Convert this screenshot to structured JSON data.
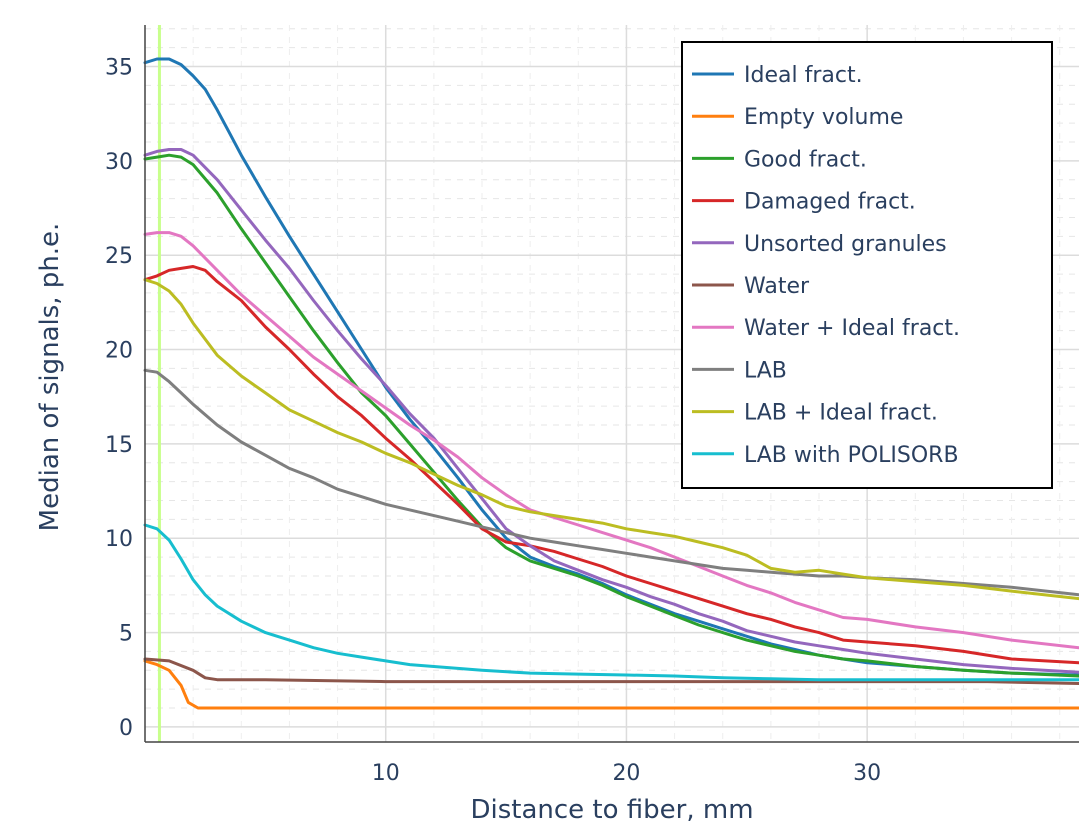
{
  "chart_data": {
    "type": "line",
    "title": "",
    "xlabel": "Distance to fiber, mm",
    "ylabel": "Median of signals, ph.e.",
    "xlim": [
      0,
      38.8
    ],
    "ylim": [
      -0.8,
      37.2
    ],
    "x_ticks": [
      "10",
      "20",
      "30"
    ],
    "y_ticks": [
      "0",
      "5",
      "10",
      "15",
      "20",
      "25",
      "30",
      "35"
    ],
    "x_tick_values": [
      10,
      20,
      30
    ],
    "y_tick_values": [
      0,
      5,
      10,
      15,
      20,
      25,
      30,
      35
    ],
    "grid": true,
    "minor_grid": "dashed",
    "legend_position": "top-right",
    "reference_line": {
      "x": 0.6,
      "color": "#c8ff8c"
    },
    "series": [
      {
        "name": "Ideal fract.",
        "color": "#1f77b4",
        "points": [
          [
            0,
            35.2
          ],
          [
            0.5,
            35.4
          ],
          [
            1,
            35.4
          ],
          [
            1.5,
            35.1
          ],
          [
            2,
            34.5
          ],
          [
            2.5,
            33.8
          ],
          [
            3,
            32.7
          ],
          [
            3.5,
            31.5
          ],
          [
            4,
            30.3
          ],
          [
            5,
            28.1
          ],
          [
            6,
            26
          ],
          [
            7,
            24
          ],
          [
            8,
            22
          ],
          [
            9,
            20
          ],
          [
            10,
            18
          ],
          [
            11,
            16.3
          ],
          [
            12,
            14.8
          ],
          [
            13,
            13.2
          ],
          [
            14,
            11.5
          ],
          [
            15,
            10
          ],
          [
            16,
            9
          ],
          [
            17,
            8.5
          ],
          [
            18,
            8.1
          ],
          [
            19,
            7.6
          ],
          [
            20,
            7
          ],
          [
            21,
            6.5
          ],
          [
            22,
            6
          ],
          [
            23,
            5.6
          ],
          [
            24,
            5.2
          ],
          [
            25,
            4.8
          ],
          [
            26,
            4.4
          ],
          [
            27,
            4.1
          ],
          [
            28,
            3.8
          ],
          [
            29,
            3.6
          ],
          [
            30,
            3.4
          ],
          [
            32,
            3.2
          ],
          [
            34,
            3
          ],
          [
            36,
            2.85
          ],
          [
            38.8,
            2.75
          ]
        ]
      },
      {
        "name": "Empty volume",
        "color": "#ff7f0e",
        "points": [
          [
            0,
            3.5
          ],
          [
            0.5,
            3.3
          ],
          [
            1,
            3
          ],
          [
            1.5,
            2.2
          ],
          [
            1.8,
            1.3
          ],
          [
            2.2,
            1
          ],
          [
            3,
            1
          ],
          [
            38.8,
            1
          ]
        ]
      },
      {
        "name": "Good fract.",
        "color": "#2ca02c",
        "points": [
          [
            0,
            30.1
          ],
          [
            0.5,
            30.2
          ],
          [
            1,
            30.3
          ],
          [
            1.5,
            30.2
          ],
          [
            2,
            29.8
          ],
          [
            3,
            28.3
          ],
          [
            4,
            26.4
          ],
          [
            5,
            24.6
          ],
          [
            6,
            22.8
          ],
          [
            7,
            21
          ],
          [
            8,
            19.3
          ],
          [
            9,
            17.7
          ],
          [
            10,
            16.5
          ],
          [
            11,
            15
          ],
          [
            12,
            13.5
          ],
          [
            13,
            12
          ],
          [
            14,
            10.6
          ],
          [
            15,
            9.5
          ],
          [
            16,
            8.8
          ],
          [
            17,
            8.4
          ],
          [
            18,
            8
          ],
          [
            19,
            7.5
          ],
          [
            20,
            6.9
          ],
          [
            21,
            6.4
          ],
          [
            22,
            5.9
          ],
          [
            23,
            5.4
          ],
          [
            24,
            5
          ],
          [
            25,
            4.6
          ],
          [
            26,
            4.3
          ],
          [
            27,
            4
          ],
          [
            28,
            3.8
          ],
          [
            29,
            3.6
          ],
          [
            30,
            3.5
          ],
          [
            32,
            3.2
          ],
          [
            34,
            3
          ],
          [
            36,
            2.85
          ],
          [
            38.8,
            2.7
          ]
        ]
      },
      {
        "name": "Damaged fract.",
        "color": "#d62728",
        "points": [
          [
            0,
            23.7
          ],
          [
            0.5,
            23.9
          ],
          [
            1,
            24.2
          ],
          [
            1.5,
            24.3
          ],
          [
            2,
            24.4
          ],
          [
            2.5,
            24.2
          ],
          [
            3,
            23.6
          ],
          [
            4,
            22.6
          ],
          [
            5,
            21.2
          ],
          [
            6,
            20
          ],
          [
            7,
            18.7
          ],
          [
            8,
            17.5
          ],
          [
            9,
            16.5
          ],
          [
            10,
            15.3
          ],
          [
            11,
            14.2
          ],
          [
            12,
            13
          ],
          [
            13,
            11.8
          ],
          [
            14,
            10.5
          ],
          [
            15,
            9.8
          ],
          [
            16,
            9.6
          ],
          [
            17,
            9.3
          ],
          [
            18,
            8.9
          ],
          [
            19,
            8.5
          ],
          [
            20,
            8
          ],
          [
            21,
            7.6
          ],
          [
            22,
            7.2
          ],
          [
            23,
            6.8
          ],
          [
            24,
            6.4
          ],
          [
            25,
            6
          ],
          [
            26,
            5.7
          ],
          [
            27,
            5.3
          ],
          [
            28,
            5
          ],
          [
            29,
            4.6
          ],
          [
            30,
            4.5
          ],
          [
            32,
            4.3
          ],
          [
            34,
            4
          ],
          [
            36,
            3.6
          ],
          [
            38.8,
            3.4
          ]
        ]
      },
      {
        "name": "Unsorted granules",
        "color": "#9467bd",
        "points": [
          [
            0,
            30.3
          ],
          [
            0.5,
            30.5
          ],
          [
            1,
            30.6
          ],
          [
            1.5,
            30.6
          ],
          [
            2,
            30.3
          ],
          [
            3,
            29
          ],
          [
            4,
            27.4
          ],
          [
            5,
            25.8
          ],
          [
            6,
            24.3
          ],
          [
            7,
            22.6
          ],
          [
            8,
            21
          ],
          [
            9,
            19.5
          ],
          [
            10,
            18.1
          ],
          [
            11,
            16.6
          ],
          [
            12,
            15.3
          ],
          [
            13,
            13.7
          ],
          [
            14,
            12.1
          ],
          [
            15,
            10.5
          ],
          [
            16,
            9.6
          ],
          [
            17,
            8.8
          ],
          [
            18,
            8.3
          ],
          [
            19,
            7.8
          ],
          [
            20,
            7.4
          ],
          [
            21,
            6.9
          ],
          [
            22,
            6.5
          ],
          [
            23,
            6
          ],
          [
            24,
            5.6
          ],
          [
            25,
            5.1
          ],
          [
            26,
            4.8
          ],
          [
            27,
            4.5
          ],
          [
            28,
            4.3
          ],
          [
            29,
            4.1
          ],
          [
            30,
            3.9
          ],
          [
            32,
            3.6
          ],
          [
            34,
            3.3
          ],
          [
            36,
            3.1
          ],
          [
            38.8,
            2.9
          ]
        ]
      },
      {
        "name": "Water",
        "color": "#8c564b",
        "points": [
          [
            0,
            3.6
          ],
          [
            1,
            3.5
          ],
          [
            2,
            3
          ],
          [
            2.5,
            2.6
          ],
          [
            3,
            2.5
          ],
          [
            5,
            2.5
          ],
          [
            10,
            2.4
          ],
          [
            15,
            2.4
          ],
          [
            20,
            2.4
          ],
          [
            25,
            2.4
          ],
          [
            30,
            2.4
          ],
          [
            35,
            2.4
          ],
          [
            38.8,
            2.3
          ]
        ]
      },
      {
        "name": "Water + Ideal fract.",
        "color": "#e377c2",
        "points": [
          [
            0,
            26.1
          ],
          [
            0.5,
            26.2
          ],
          [
            1,
            26.2
          ],
          [
            1.5,
            26
          ],
          [
            2,
            25.5
          ],
          [
            3,
            24.2
          ],
          [
            4,
            22.9
          ],
          [
            5,
            21.8
          ],
          [
            6,
            20.7
          ],
          [
            7,
            19.6
          ],
          [
            8,
            18.7
          ],
          [
            9,
            17.8
          ],
          [
            10,
            16.9
          ],
          [
            11,
            16
          ],
          [
            12,
            15.2
          ],
          [
            13,
            14.3
          ],
          [
            14,
            13.2
          ],
          [
            15,
            12.3
          ],
          [
            16,
            11.5
          ],
          [
            17,
            11.1
          ],
          [
            18,
            10.7
          ],
          [
            19,
            10.3
          ],
          [
            20,
            9.9
          ],
          [
            21,
            9.5
          ],
          [
            22,
            9
          ],
          [
            23,
            8.5
          ],
          [
            24,
            8
          ],
          [
            25,
            7.5
          ],
          [
            26,
            7.1
          ],
          [
            27,
            6.6
          ],
          [
            28,
            6.2
          ],
          [
            29,
            5.8
          ],
          [
            30,
            5.7
          ],
          [
            32,
            5.3
          ],
          [
            34,
            5
          ],
          [
            36,
            4.6
          ],
          [
            38.8,
            4.2
          ]
        ]
      },
      {
        "name": "LAB",
        "color": "#7f7f7f",
        "points": [
          [
            0,
            18.9
          ],
          [
            0.5,
            18.8
          ],
          [
            1,
            18.3
          ],
          [
            1.5,
            17.7
          ],
          [
            2,
            17.1
          ],
          [
            3,
            16
          ],
          [
            4,
            15.1
          ],
          [
            5,
            14.4
          ],
          [
            6,
            13.7
          ],
          [
            7,
            13.2
          ],
          [
            8,
            12.6
          ],
          [
            9,
            12.2
          ],
          [
            10,
            11.8
          ],
          [
            11,
            11.5
          ],
          [
            12,
            11.2
          ],
          [
            13,
            10.9
          ],
          [
            14,
            10.6
          ],
          [
            15,
            10.3
          ],
          [
            16,
            10
          ],
          [
            17,
            9.8
          ],
          [
            18,
            9.6
          ],
          [
            19,
            9.4
          ],
          [
            20,
            9.2
          ],
          [
            21,
            9
          ],
          [
            22,
            8.8
          ],
          [
            23,
            8.6
          ],
          [
            24,
            8.4
          ],
          [
            25,
            8.3
          ],
          [
            26,
            8.2
          ],
          [
            27,
            8.1
          ],
          [
            28,
            8
          ],
          [
            29,
            8
          ],
          [
            30,
            7.9
          ],
          [
            32,
            7.8
          ],
          [
            34,
            7.6
          ],
          [
            36,
            7.4
          ],
          [
            38.8,
            7
          ]
        ]
      },
      {
        "name": "LAB + Ideal fract.",
        "color": "#bcbd22",
        "points": [
          [
            0,
            23.7
          ],
          [
            0.5,
            23.5
          ],
          [
            1,
            23.1
          ],
          [
            1.5,
            22.4
          ],
          [
            2,
            21.4
          ],
          [
            3,
            19.7
          ],
          [
            4,
            18.6
          ],
          [
            5,
            17.7
          ],
          [
            6,
            16.8
          ],
          [
            7,
            16.2
          ],
          [
            8,
            15.6
          ],
          [
            9,
            15.1
          ],
          [
            10,
            14.5
          ],
          [
            11,
            14
          ],
          [
            12,
            13.4
          ],
          [
            13,
            12.8
          ],
          [
            14,
            12.3
          ],
          [
            15,
            11.7
          ],
          [
            16,
            11.4
          ],
          [
            17,
            11.2
          ],
          [
            18,
            11
          ],
          [
            19,
            10.8
          ],
          [
            20,
            10.5
          ],
          [
            21,
            10.3
          ],
          [
            22,
            10.1
          ],
          [
            23,
            9.8
          ],
          [
            24,
            9.5
          ],
          [
            25,
            9.1
          ],
          [
            26,
            8.4
          ],
          [
            27,
            8.2
          ],
          [
            28,
            8.3
          ],
          [
            29,
            8.1
          ],
          [
            30,
            7.9
          ],
          [
            32,
            7.7
          ],
          [
            34,
            7.5
          ],
          [
            36,
            7.2
          ],
          [
            38.8,
            6.8
          ]
        ]
      },
      {
        "name": "LAB with POLISORB",
        "color": "#17becf",
        "points": [
          [
            0,
            10.7
          ],
          [
            0.5,
            10.5
          ],
          [
            1,
            9.9
          ],
          [
            1.5,
            8.9
          ],
          [
            2,
            7.8
          ],
          [
            2.5,
            7
          ],
          [
            3,
            6.4
          ],
          [
            4,
            5.6
          ],
          [
            5,
            5
          ],
          [
            6,
            4.6
          ],
          [
            7,
            4.2
          ],
          [
            8,
            3.9
          ],
          [
            9,
            3.7
          ],
          [
            10,
            3.5
          ],
          [
            11,
            3.3
          ],
          [
            12,
            3.2
          ],
          [
            14,
            3
          ],
          [
            16,
            2.85
          ],
          [
            18,
            2.8
          ],
          [
            20,
            2.75
          ],
          [
            22,
            2.7
          ],
          [
            24,
            2.6
          ],
          [
            26,
            2.55
          ],
          [
            28,
            2.5
          ],
          [
            30,
            2.5
          ],
          [
            34,
            2.5
          ],
          [
            38.8,
            2.5
          ]
        ]
      }
    ]
  }
}
